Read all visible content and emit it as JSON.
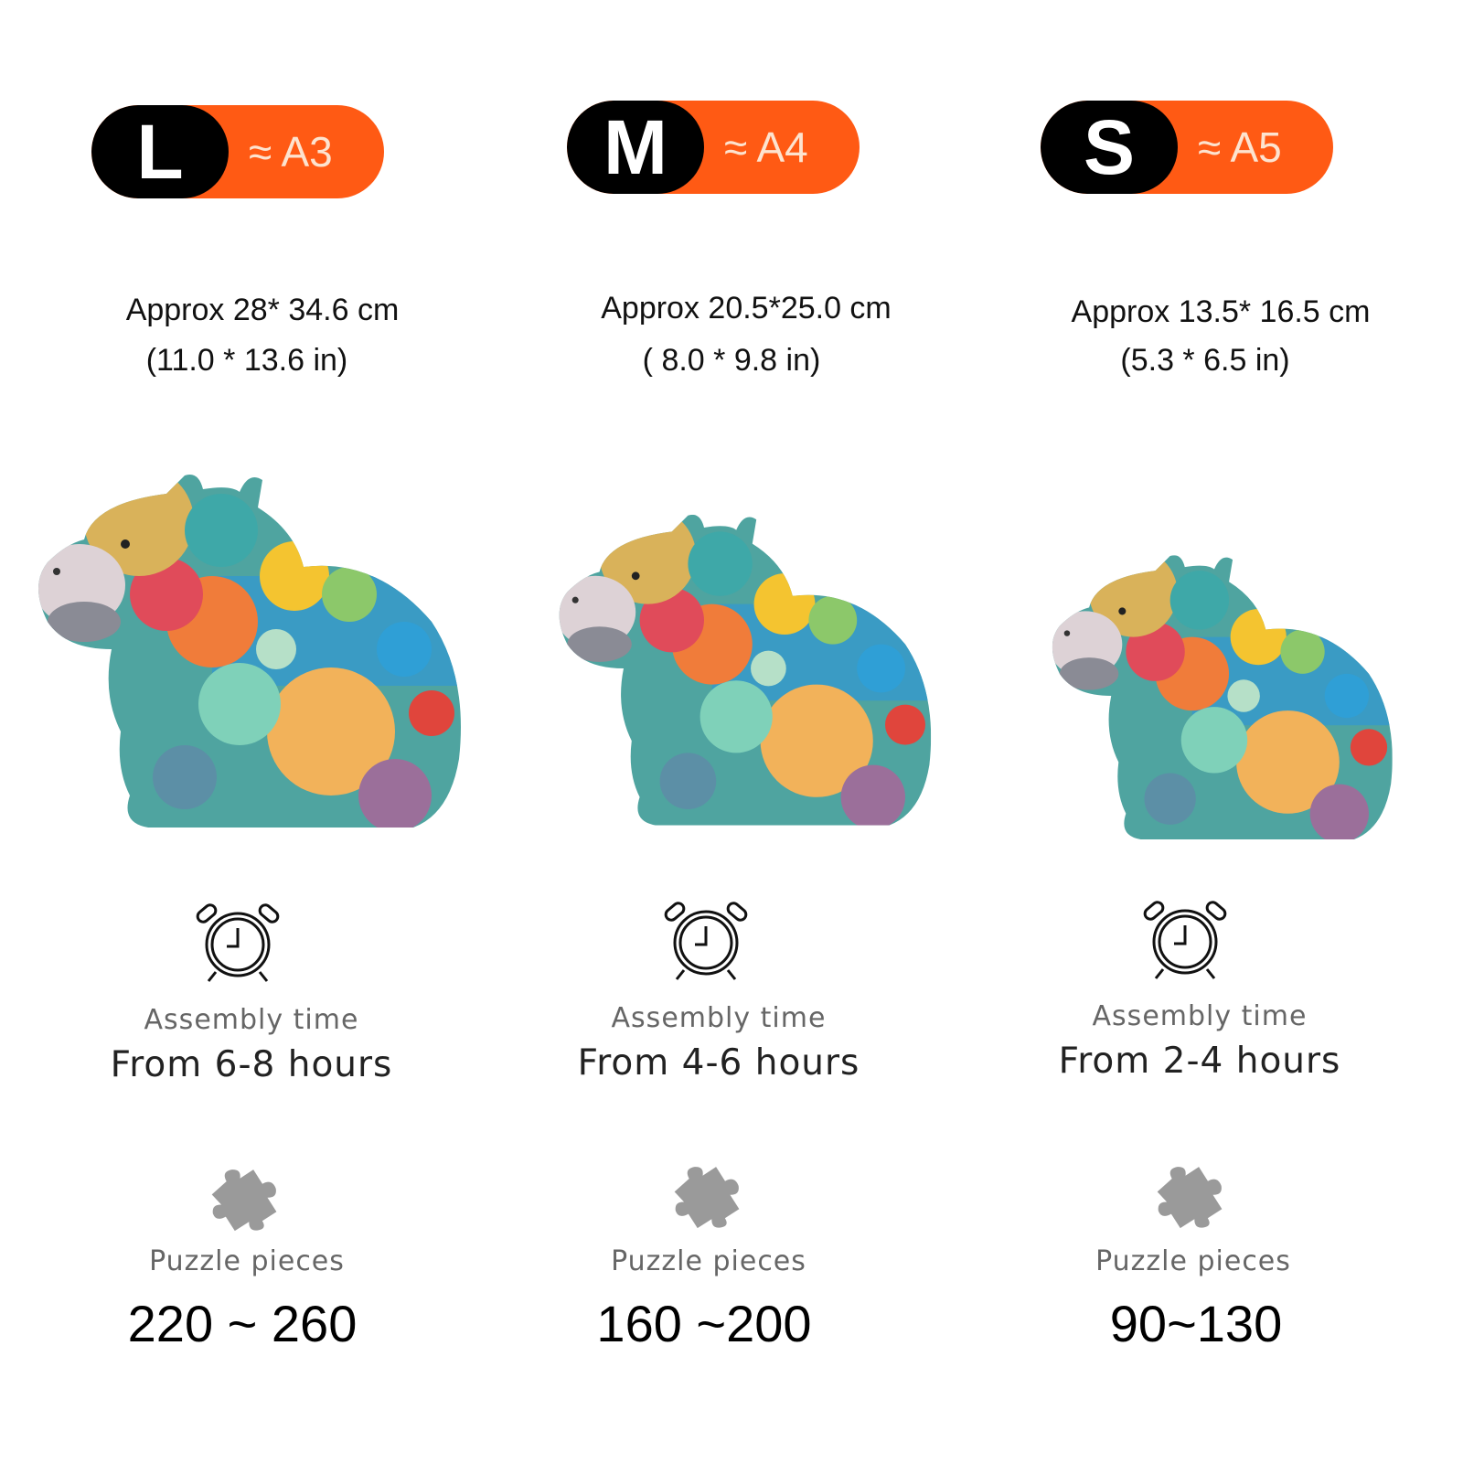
{
  "colors": {
    "badge_dark": "#000000",
    "badge_accent": "#ff5a14",
    "label_gray": "#666666"
  },
  "sizes": [
    {
      "letter": "L",
      "paper": "≈ A3",
      "dims_cm": "Approx 28* 34.6 cm",
      "dims_in": "(11.0 * 13.6 in)",
      "assembly_label": "Assembly time",
      "assembly_value": "From 6-8 hours",
      "pieces_label": "Puzzle pieces",
      "pieces_value": "220 ~ 260"
    },
    {
      "letter": "M",
      "paper": "≈ A4",
      "dims_cm": "Approx 20.5*25.0  cm",
      "dims_in": "( 8.0 * 9.8  in)",
      "assembly_label": "Assembly time",
      "assembly_value": "From 4-6 hours",
      "pieces_label": "Puzzle pieces",
      "pieces_value": "160 ~200"
    },
    {
      "letter": "S",
      "paper": "≈ A5",
      "dims_cm": "Approx 13.5* 16.5 cm",
      "dims_in": "(5.3 * 6.5 in)",
      "assembly_label": "Assembly time",
      "assembly_value": "From 2-4 hours",
      "pieces_label": "Puzzle pieces",
      "pieces_value": "90~130"
    }
  ],
  "icons": {
    "clock": "alarm-clock-icon",
    "piece": "puzzle-piece-icon"
  }
}
